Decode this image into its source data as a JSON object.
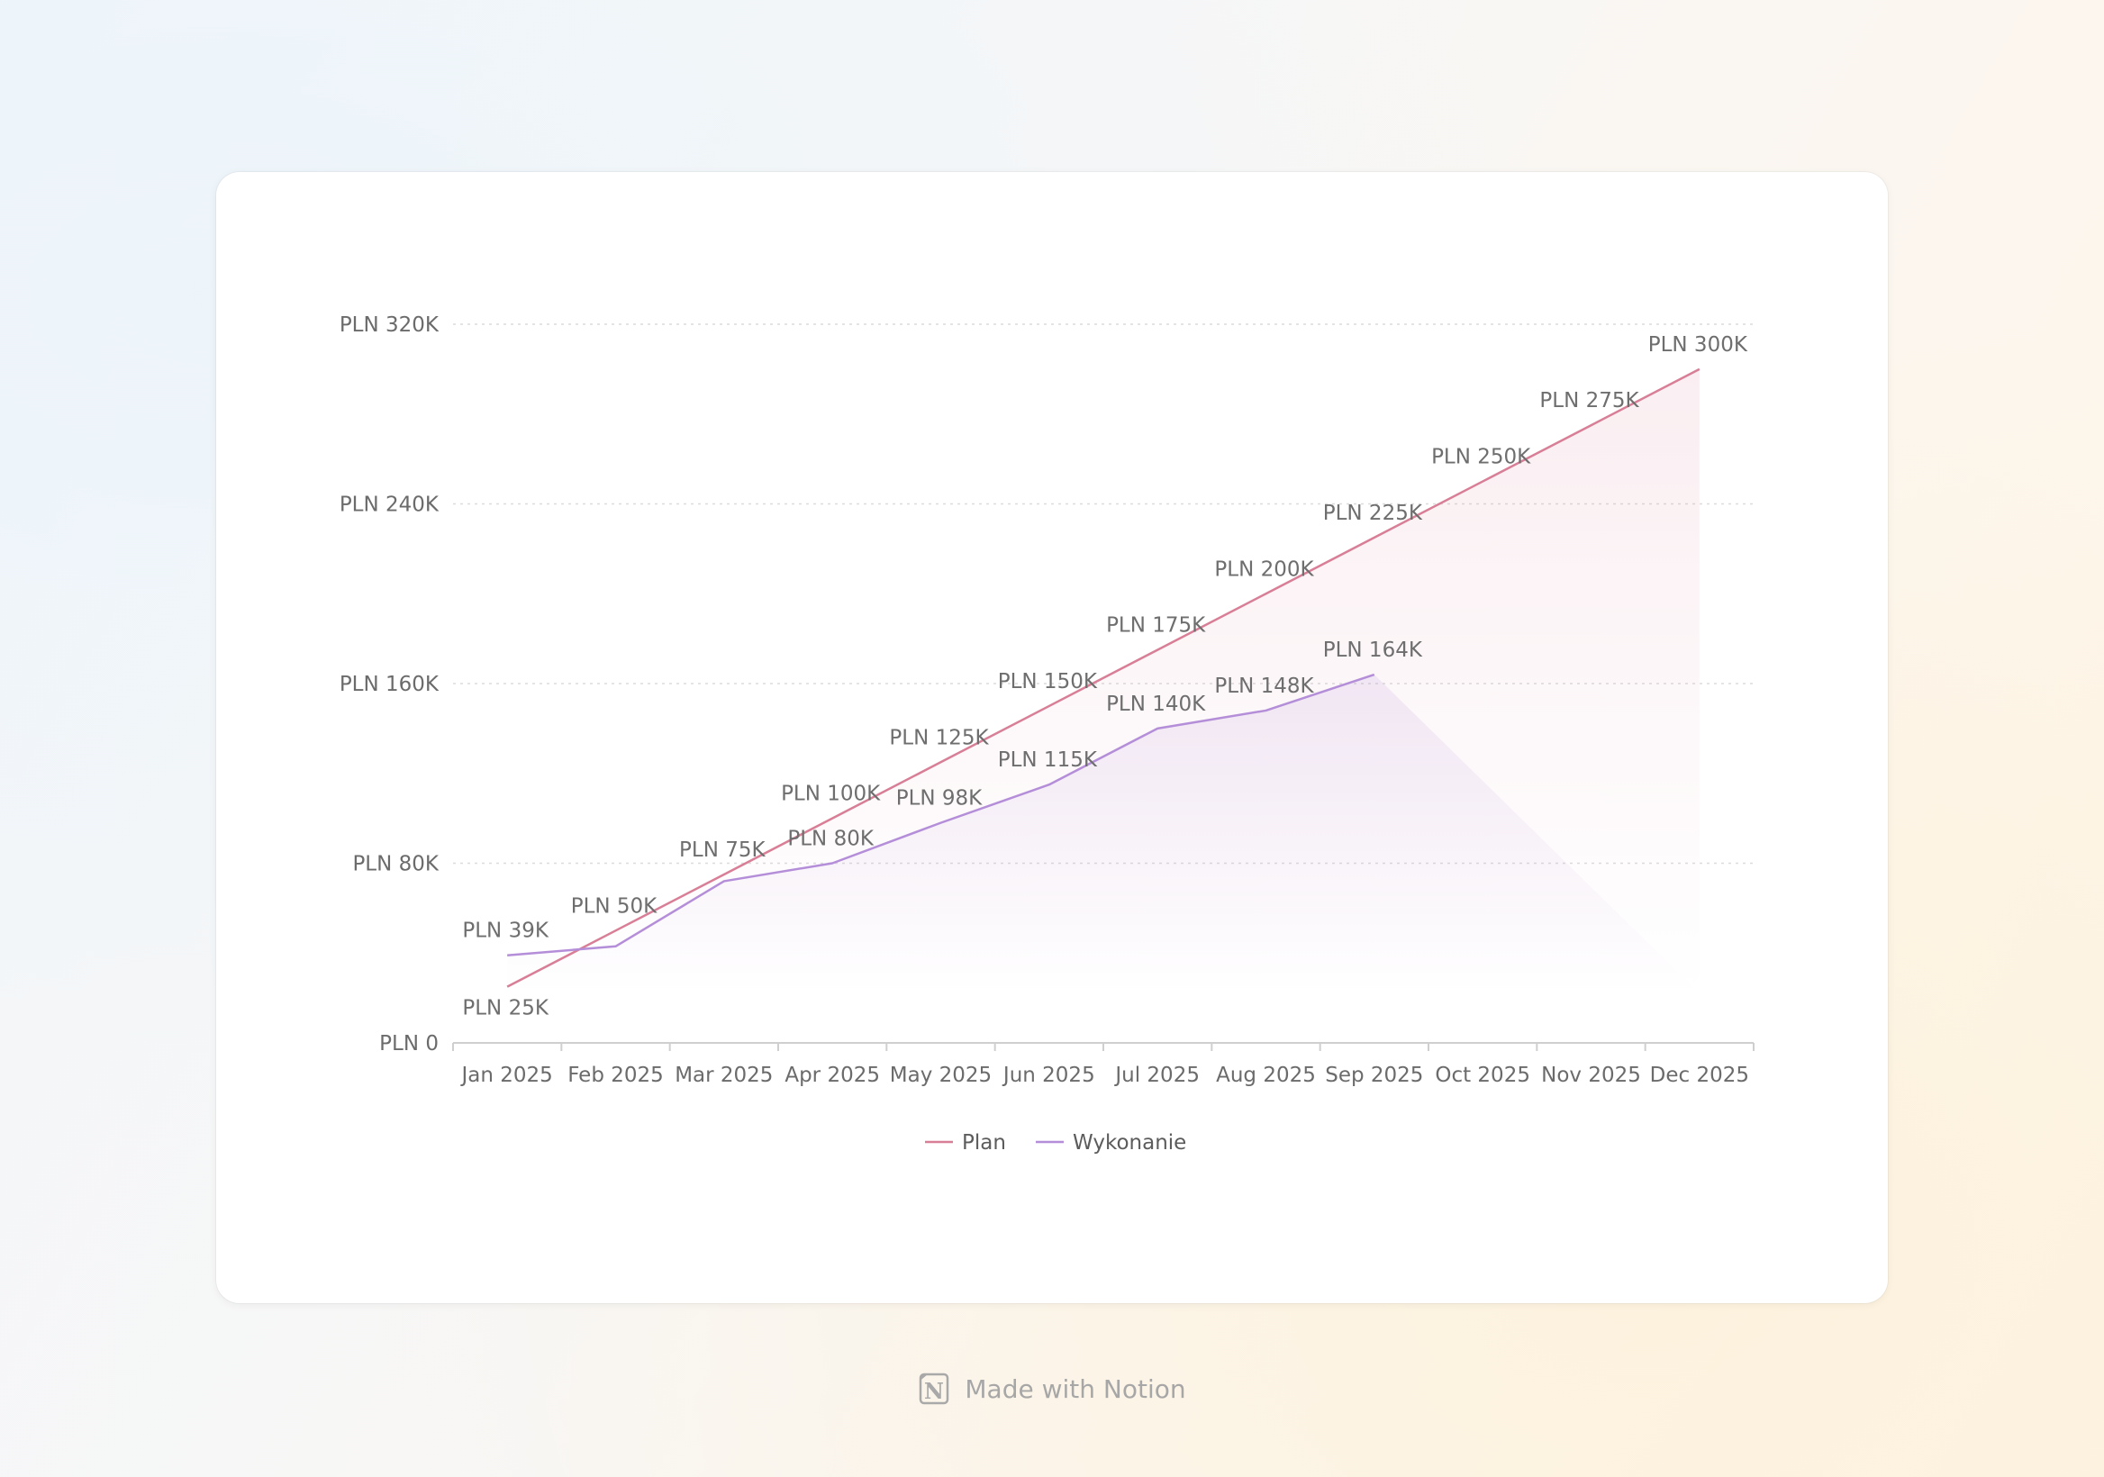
{
  "footer": {
    "text": "Made with Notion",
    "icon": "notion-logo-icon"
  },
  "colors": {
    "plan": "#d87e96",
    "actual": "#b48ed8",
    "grid": "#dcdcdc",
    "axis": "#cfcfcf"
  },
  "chart_data": {
    "type": "line",
    "categories": [
      "Jan 2025",
      "Feb 2025",
      "Mar 2025",
      "Apr 2025",
      "May 2025",
      "Jun 2025",
      "Jul 2025",
      "Aug 2025",
      "Sep 2025",
      "Oct 2025",
      "Nov 2025",
      "Dec 2025"
    ],
    "series": [
      {
        "name": "Plan",
        "values": [
          25000,
          50000,
          75000,
          100000,
          125000,
          150000,
          175000,
          200000,
          225000,
          250000,
          275000,
          300000
        ],
        "labels": [
          "PLN 25K",
          "PLN 50K",
          "PLN 75K",
          "PLN 100K",
          "PLN 125K",
          "PLN 150K",
          "PLN 175K",
          "PLN 200K",
          "PLN 225K",
          "PLN 250K",
          "PLN 275K",
          "PLN 300K"
        ]
      },
      {
        "name": "Wykonanie",
        "values": [
          39000,
          43000,
          72000,
          80000,
          98000,
          115000,
          140000,
          148000,
          164000,
          null,
          null,
          null
        ],
        "labels": [
          "PLN 39K",
          "",
          "",
          "PLN 80K",
          "PLN 98K",
          "PLN 115K",
          "PLN 140K",
          "PLN 148K",
          "PLN 164K",
          "",
          "",
          ""
        ]
      }
    ],
    "ylim": [
      0,
      320000
    ],
    "yticks": [
      0,
      80000,
      160000,
      240000,
      320000
    ],
    "ytick_labels": [
      "PLN 0",
      "PLN 80K",
      "PLN 160K",
      "PLN 240K",
      "PLN 320K"
    ],
    "legend": "bottom-center",
    "grid": true
  }
}
